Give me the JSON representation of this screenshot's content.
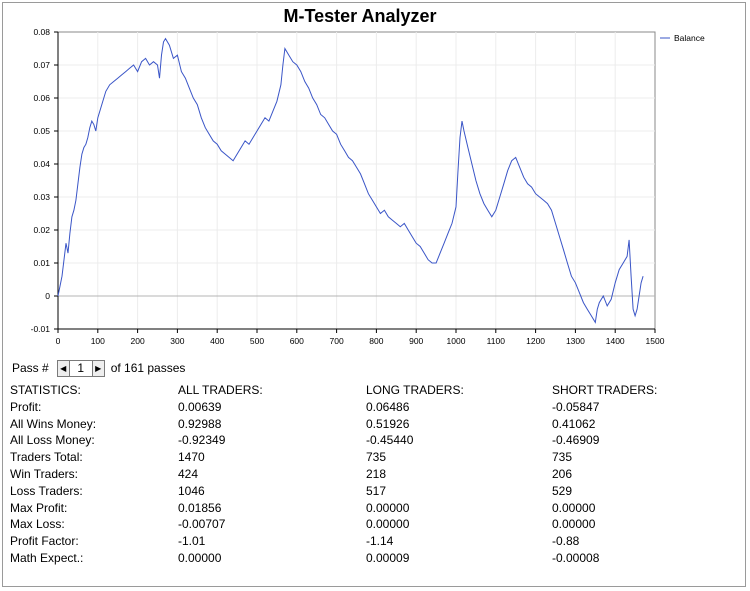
{
  "app": {
    "title": "M-Tester Analyzer"
  },
  "chart_data": {
    "type": "line",
    "legend": "top-right",
    "grid": true,
    "x": {
      "ticks": [
        0,
        100,
        200,
        300,
        400,
        500,
        600,
        700,
        800,
        900,
        1000,
        1100,
        1200,
        1300,
        1400,
        1500
      ],
      "range": [
        0,
        1500
      ]
    },
    "y": {
      "ticks": [
        -0.01,
        0,
        0.01,
        0.02,
        0.03,
        0.04,
        0.05,
        0.06,
        0.07,
        0.08
      ],
      "range": [
        -0.01,
        0.08
      ]
    },
    "series": [
      {
        "name": "Balance",
        "color": "#3a55c7",
        "points": [
          [
            0,
            0
          ],
          [
            5,
            0.003
          ],
          [
            10,
            0.006
          ],
          [
            15,
            0.011
          ],
          [
            20,
            0.016
          ],
          [
            25,
            0.013
          ],
          [
            30,
            0.019
          ],
          [
            35,
            0.024
          ],
          [
            40,
            0.026
          ],
          [
            45,
            0.029
          ],
          [
            50,
            0.034
          ],
          [
            55,
            0.039
          ],
          [
            60,
            0.043
          ],
          [
            65,
            0.045
          ],
          [
            70,
            0.046
          ],
          [
            75,
            0.048
          ],
          [
            80,
            0.051
          ],
          [
            85,
            0.053
          ],
          [
            90,
            0.052
          ],
          [
            95,
            0.05
          ],
          [
            100,
            0.054
          ],
          [
            110,
            0.058
          ],
          [
            120,
            0.062
          ],
          [
            130,
            0.064
          ],
          [
            140,
            0.065
          ],
          [
            150,
            0.066
          ],
          [
            160,
            0.067
          ],
          [
            170,
            0.068
          ],
          [
            180,
            0.069
          ],
          [
            190,
            0.07
          ],
          [
            200,
            0.068
          ],
          [
            210,
            0.071
          ],
          [
            220,
            0.072
          ],
          [
            230,
            0.07
          ],
          [
            240,
            0.071
          ],
          [
            250,
            0.07
          ],
          [
            255,
            0.066
          ],
          [
            260,
            0.073
          ],
          [
            265,
            0.077
          ],
          [
            270,
            0.078
          ],
          [
            280,
            0.076
          ],
          [
            290,
            0.072
          ],
          [
            300,
            0.073
          ],
          [
            310,
            0.068
          ],
          [
            320,
            0.066
          ],
          [
            330,
            0.063
          ],
          [
            340,
            0.06
          ],
          [
            350,
            0.058
          ],
          [
            360,
            0.054
          ],
          [
            370,
            0.051
          ],
          [
            380,
            0.049
          ],
          [
            390,
            0.047
          ],
          [
            400,
            0.046
          ],
          [
            410,
            0.044
          ],
          [
            420,
            0.043
          ],
          [
            430,
            0.042
          ],
          [
            440,
            0.041
          ],
          [
            450,
            0.043
          ],
          [
            460,
            0.045
          ],
          [
            470,
            0.047
          ],
          [
            480,
            0.046
          ],
          [
            490,
            0.048
          ],
          [
            500,
            0.05
          ],
          [
            510,
            0.052
          ],
          [
            520,
            0.054
          ],
          [
            530,
            0.053
          ],
          [
            540,
            0.056
          ],
          [
            550,
            0.059
          ],
          [
            560,
            0.064
          ],
          [
            565,
            0.07
          ],
          [
            570,
            0.075
          ],
          [
            580,
            0.073
          ],
          [
            590,
            0.071
          ],
          [
            600,
            0.07
          ],
          [
            610,
            0.068
          ],
          [
            620,
            0.065
          ],
          [
            630,
            0.063
          ],
          [
            640,
            0.06
          ],
          [
            650,
            0.058
          ],
          [
            660,
            0.055
          ],
          [
            670,
            0.054
          ],
          [
            680,
            0.052
          ],
          [
            690,
            0.05
          ],
          [
            700,
            0.049
          ],
          [
            710,
            0.046
          ],
          [
            720,
            0.044
          ],
          [
            730,
            0.042
          ],
          [
            740,
            0.041
          ],
          [
            750,
            0.039
          ],
          [
            760,
            0.037
          ],
          [
            770,
            0.034
          ],
          [
            780,
            0.031
          ],
          [
            790,
            0.029
          ],
          [
            800,
            0.027
          ],
          [
            810,
            0.025
          ],
          [
            820,
            0.026
          ],
          [
            830,
            0.024
          ],
          [
            840,
            0.023
          ],
          [
            850,
            0.022
          ],
          [
            860,
            0.021
          ],
          [
            870,
            0.022
          ],
          [
            880,
            0.02
          ],
          [
            890,
            0.018
          ],
          [
            900,
            0.016
          ],
          [
            910,
            0.015
          ],
          [
            920,
            0.013
          ],
          [
            930,
            0.011
          ],
          [
            940,
            0.01
          ],
          [
            950,
            0.01
          ],
          [
            960,
            0.013
          ],
          [
            970,
            0.016
          ],
          [
            980,
            0.019
          ],
          [
            990,
            0.022
          ],
          [
            1000,
            0.027
          ],
          [
            1005,
            0.038
          ],
          [
            1010,
            0.048
          ],
          [
            1015,
            0.053
          ],
          [
            1020,
            0.05
          ],
          [
            1030,
            0.045
          ],
          [
            1040,
            0.04
          ],
          [
            1050,
            0.035
          ],
          [
            1060,
            0.031
          ],
          [
            1070,
            0.028
          ],
          [
            1080,
            0.026
          ],
          [
            1090,
            0.024
          ],
          [
            1100,
            0.026
          ],
          [
            1110,
            0.03
          ],
          [
            1120,
            0.034
          ],
          [
            1130,
            0.038
          ],
          [
            1140,
            0.041
          ],
          [
            1150,
            0.042
          ],
          [
            1160,
            0.039
          ],
          [
            1170,
            0.036
          ],
          [
            1180,
            0.034
          ],
          [
            1190,
            0.033
          ],
          [
            1200,
            0.031
          ],
          [
            1210,
            0.03
          ],
          [
            1220,
            0.029
          ],
          [
            1230,
            0.028
          ],
          [
            1240,
            0.026
          ],
          [
            1250,
            0.022
          ],
          [
            1260,
            0.018
          ],
          [
            1270,
            0.014
          ],
          [
            1280,
            0.01
          ],
          [
            1290,
            0.006
          ],
          [
            1300,
            0.004
          ],
          [
            1310,
            0.001
          ],
          [
            1320,
            -0.002
          ],
          [
            1330,
            -0.004
          ],
          [
            1340,
            -0.006
          ],
          [
            1350,
            -0.008
          ],
          [
            1355,
            -0.004
          ],
          [
            1360,
            -0.002
          ],
          [
            1370,
            0.0
          ],
          [
            1380,
            -0.003
          ],
          [
            1390,
            -0.001
          ],
          [
            1400,
            0.004
          ],
          [
            1410,
            0.008
          ],
          [
            1420,
            0.01
          ],
          [
            1430,
            0.012
          ],
          [
            1435,
            0.017
          ],
          [
            1440,
            0.006
          ],
          [
            1445,
            -0.004
          ],
          [
            1450,
            -0.006
          ],
          [
            1455,
            -0.004
          ],
          [
            1460,
            0.0
          ],
          [
            1465,
            0.004
          ],
          [
            1470,
            0.006
          ]
        ]
      }
    ]
  },
  "pass": {
    "label": "Pass #",
    "value": "1",
    "suffix": "of 161 passes"
  },
  "stats": {
    "headers": [
      "STATISTICS:",
      "ALL TRADERS:",
      "LONG TRADERS:",
      "SHORT TRADERS:"
    ],
    "rows": [
      [
        "Profit:",
        "0.00639",
        "0.06486",
        "-0.05847"
      ],
      [
        "All Wins Money:",
        "0.92988",
        "0.51926",
        "0.41062"
      ],
      [
        "All Loss Money:",
        "-0.92349",
        "-0.45440",
        "-0.46909"
      ],
      [
        "Traders Total:",
        "1470",
        "735",
        "735"
      ],
      [
        "Win Traders:",
        "424",
        "218",
        "206"
      ],
      [
        "Loss Traders:",
        "1046",
        "517",
        "529"
      ],
      [
        "Max Profit:",
        "0.01856",
        "0.00000",
        "0.00000"
      ],
      [
        "Max Loss:",
        "-0.00707",
        "0.00000",
        "0.00000"
      ],
      [
        "Profit Factor:",
        "-1.01",
        "-1.14",
        "-0.88"
      ],
      [
        "Math Expect.:",
        "0.00000",
        "0.00009",
        "-0.00008"
      ]
    ]
  }
}
